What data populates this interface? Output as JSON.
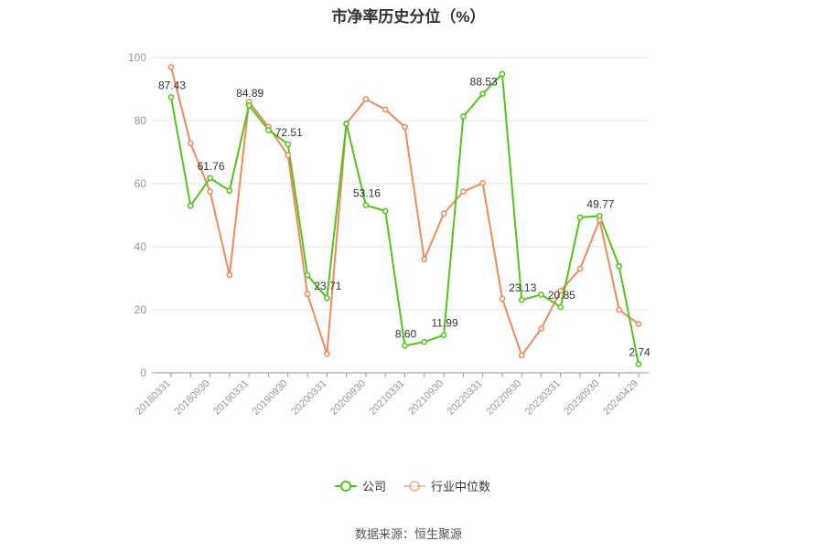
{
  "chart_data": {
    "type": "line",
    "title": "市净率历史分位（%）",
    "source": "数据来源：恒生聚源",
    "ylim": [
      0,
      100
    ],
    "yticks": [
      0,
      20,
      40,
      60,
      80,
      100
    ],
    "xtick_labels": [
      "20180331",
      "20180930",
      "20190331",
      "20190930",
      "20200331",
      "20200930",
      "20210331",
      "20210930",
      "20220331",
      "20220930",
      "20230331",
      "20230930",
      "20240429"
    ],
    "x": [
      "20180331",
      "20180630",
      "20180930",
      "20181231",
      "20190331",
      "20190630",
      "20190930",
      "20191231",
      "20200331",
      "20200630",
      "20200930",
      "20201231",
      "20210331",
      "20210630",
      "20210930",
      "20211231",
      "20220331",
      "20220630",
      "20220930",
      "20221231",
      "20230331",
      "20230630",
      "20230930",
      "20231231",
      "20240429"
    ],
    "series": [
      {
        "name": "公司",
        "color": "#52c41a",
        "values": [
          87.43,
          53.0,
          61.76,
          57.8,
          84.89,
          77.0,
          72.51,
          31.0,
          23.71,
          79.0,
          53.16,
          51.3,
          8.6,
          9.8,
          11.99,
          81.3,
          88.53,
          94.8,
          23.13,
          24.8,
          20.85,
          49.3,
          49.77,
          33.8,
          2.74
        ]
      },
      {
        "name": "行业中位数",
        "color": "#f08a5d",
        "values": [
          97.0,
          72.8,
          57.5,
          31.0,
          86.0,
          78.0,
          69.0,
          25.0,
          6.0,
          79.0,
          86.8,
          83.5,
          78.0,
          36.0,
          50.5,
          57.5,
          60.2,
          23.5,
          5.5,
          14.0,
          26.0,
          33.0,
          48.5,
          20.0,
          15.5
        ]
      }
    ],
    "data_labels": [
      {
        "series": 0,
        "index": 0,
        "text": "87.43"
      },
      {
        "series": 0,
        "index": 2,
        "text": "61.76"
      },
      {
        "series": 0,
        "index": 4,
        "text": "84.89"
      },
      {
        "series": 0,
        "index": 6,
        "text": "72.51"
      },
      {
        "series": 0,
        "index": 8,
        "text": "23.71"
      },
      {
        "series": 0,
        "index": 10,
        "text": "53.16"
      },
      {
        "series": 0,
        "index": 12,
        "text": "8.60"
      },
      {
        "series": 0,
        "index": 14,
        "text": "11.99"
      },
      {
        "series": 0,
        "index": 16,
        "text": "88.53"
      },
      {
        "series": 0,
        "index": 18,
        "text": "23.13"
      },
      {
        "series": 0,
        "index": 20,
        "text": "20.85"
      },
      {
        "series": 0,
        "index": 22,
        "text": "49.77"
      },
      {
        "series": 0,
        "index": 24,
        "text": "2.74"
      }
    ],
    "legend": [
      "公司",
      "行业中位数"
    ],
    "legend_position": "bottom-center",
    "grid": true
  }
}
